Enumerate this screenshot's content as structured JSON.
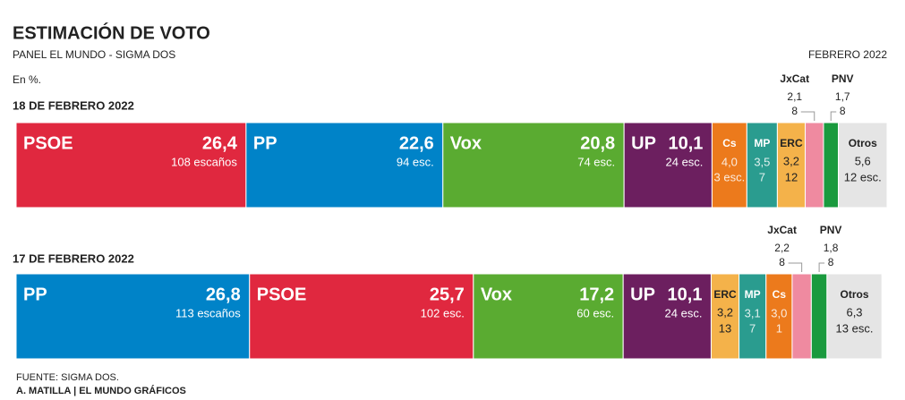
{
  "header": {
    "title": "ESTIMACIÓN DE VOTO",
    "subtitle": "PANEL EL MUNDO - SIGMA DOS",
    "date": "FEBRERO 2022",
    "unit": "En %."
  },
  "footer": {
    "source": "FUENTE: SIGMA DOS.",
    "credit": "A. MATILLA | EL MUNDO GRÁFICOS"
  },
  "chart_data": [
    {
      "type": "stacked-bar",
      "title": "18 DE FEBRERO 2022",
      "xlim": [
        0,
        100
      ],
      "segments": [
        {
          "name": "PSOE",
          "color": "#e0283f",
          "value": 26.4,
          "value_label": "26,4",
          "seats": "108 escaños"
        },
        {
          "name": "PP",
          "color": "#0083c8",
          "value": 22.6,
          "value_label": "22,6",
          "seats": "94 esc."
        },
        {
          "name": "Vox",
          "color": "#5aab31",
          "value": 20.8,
          "value_label": "20,8",
          "seats": "74 esc."
        },
        {
          "name": "UP",
          "color": "#6c1f5f",
          "value": 10.1,
          "value_label": "10,1",
          "seats": "24 esc."
        },
        {
          "name": "Cs",
          "color": "#ec7a1c",
          "value": 4.0,
          "value_label": "4,0",
          "seats": "3 esc."
        },
        {
          "name": "MP",
          "color": "#2a9c8f",
          "value": 3.5,
          "value_label": "3,5",
          "seats": "7"
        },
        {
          "name": "ERC",
          "color": "#f4b24a",
          "value": 3.2,
          "value_label": "3,2",
          "seats": "12"
        },
        {
          "name": "JxCat",
          "color": "#ef8aa0",
          "value": 2.1,
          "value_label": "2,1",
          "seats": "8"
        },
        {
          "name": "PNV",
          "color": "#1a9a3e",
          "value": 1.7,
          "value_label": "1,7",
          "seats": "8"
        },
        {
          "name": "Otros",
          "color": "#e5e5e5",
          "value": 5.6,
          "value_label": "5,6",
          "seats": "12 esc."
        }
      ]
    },
    {
      "type": "stacked-bar",
      "title": "17 DE FEBRERO 2022",
      "xlim": [
        0,
        100
      ],
      "segments": [
        {
          "name": "PP",
          "color": "#0083c8",
          "value": 26.8,
          "value_label": "26,8",
          "seats": "113 escaños"
        },
        {
          "name": "PSOE",
          "color": "#e0283f",
          "value": 25.7,
          "value_label": "25,7",
          "seats": "102 esc."
        },
        {
          "name": "Vox",
          "color": "#5aab31",
          "value": 17.2,
          "value_label": "17,2",
          "seats": "60 esc."
        },
        {
          "name": "UP",
          "color": "#6c1f5f",
          "value": 10.1,
          "value_label": "10,1",
          "seats": "24 esc."
        },
        {
          "name": "ERC",
          "color": "#f4b24a",
          "value": 3.2,
          "value_label": "3,2",
          "seats": "13"
        },
        {
          "name": "MP",
          "color": "#2a9c8f",
          "value": 3.1,
          "value_label": "3,1",
          "seats": "7"
        },
        {
          "name": "Cs",
          "color": "#ec7a1c",
          "value": 3.0,
          "value_label": "3,0",
          "seats": "1"
        },
        {
          "name": "JxCat",
          "color": "#ef8aa0",
          "value": 2.2,
          "value_label": "2,2",
          "seats": "8"
        },
        {
          "name": "PNV",
          "color": "#1a9a3e",
          "value": 1.8,
          "value_label": "1,8",
          "seats": "8"
        },
        {
          "name": "Otros",
          "color": "#e5e5e5",
          "value": 6.3,
          "value_label": "6,3",
          "seats": "13 esc."
        }
      ]
    }
  ]
}
